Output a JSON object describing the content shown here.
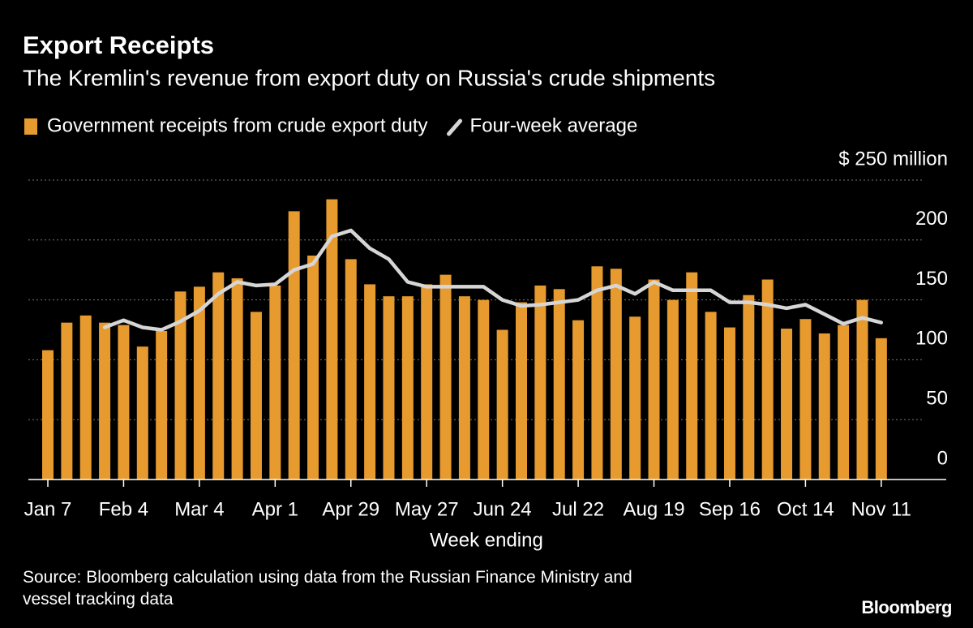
{
  "chart_data": {
    "type": "bar",
    "title": "Export Receipts",
    "subtitle": "The Kremlin's revenue from export duty on Russia's crude shipments",
    "x_label": "Week ending",
    "source": "Source: Bloomberg calculation using data from the Russian Finance Ministry and vessel tracking data",
    "brand": "Bloomberg",
    "categories": [
      "Jan 7",
      null,
      null,
      null,
      "Feb 4",
      null,
      null,
      null,
      "Mar 4",
      null,
      null,
      null,
      "Apr 1",
      null,
      null,
      null,
      "Apr 29",
      null,
      null,
      null,
      "May 27",
      null,
      null,
      null,
      "Jun 24",
      null,
      null,
      null,
      "Jul 22",
      null,
      null,
      null,
      "Aug 19",
      null,
      null,
      null,
      "Sep 16",
      null,
      null,
      null,
      "Oct 14",
      null,
      null,
      null,
      "Nov 11"
    ],
    "series": [
      {
        "name": "Government receipts from crude export duty",
        "type": "bar",
        "color": "#e79a2e",
        "values": [
          108,
          131,
          137,
          131,
          129,
          111,
          124,
          157,
          161,
          173,
          168,
          140,
          162,
          224,
          187,
          234,
          184,
          163,
          153,
          153,
          163,
          171,
          153,
          150,
          125,
          148,
          162,
          159,
          133,
          178,
          176,
          136,
          167,
          150,
          173,
          140,
          127,
          154,
          167,
          126,
          134,
          122,
          129,
          150,
          118
        ]
      },
      {
        "name": "Four-week average",
        "type": "line",
        "color": "#d6d6d6",
        "values": [
          null,
          null,
          null,
          127,
          133,
          127,
          125,
          132,
          141,
          155,
          165,
          162,
          163,
          175,
          180,
          203,
          208,
          193,
          184,
          165,
          161,
          161,
          161,
          161,
          150,
          145,
          146,
          148,
          150,
          158,
          162,
          155,
          165,
          158,
          158,
          158,
          148,
          148,
          146,
          143,
          146,
          138,
          130,
          135,
          131
        ]
      }
    ],
    "ylim": [
      0,
      250
    ],
    "yticks": [
      0,
      50,
      100,
      150,
      200,
      {
        "value": 250,
        "label": "$ 250 million"
      }
    ],
    "grid": true
  }
}
